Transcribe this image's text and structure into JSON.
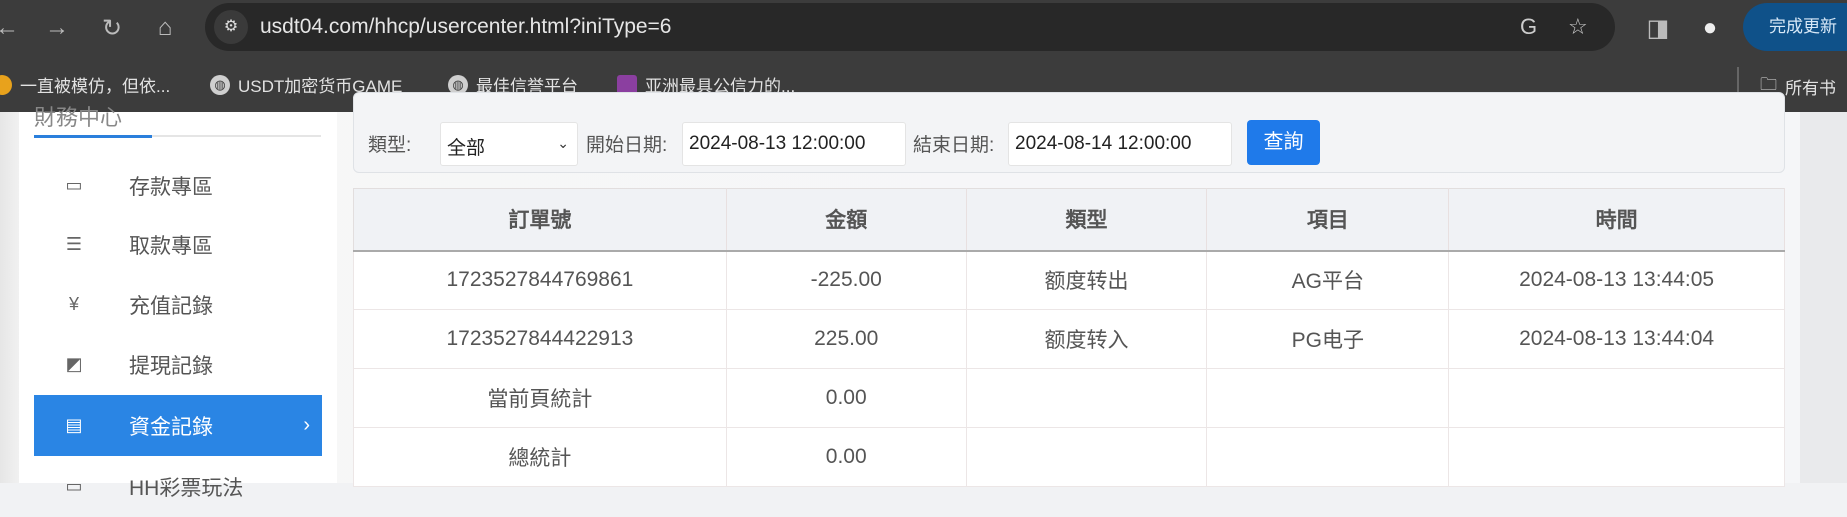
{
  "browser": {
    "url": "usdt04.com/hhcp/usercenter.html?iniType=6",
    "update_button": "完成更新",
    "bookmarks": [
      {
        "label": "一直被模仿，但依...",
        "icon": "smiley-icon"
      },
      {
        "label": "USDT加密货币GAME",
        "icon": "globe-icon"
      },
      {
        "label": "最佳信誉平台",
        "icon": "globe-icon"
      },
      {
        "label": "亚洲最具公信力的...",
        "icon": "flower-icon"
      }
    ],
    "all_bookmarks": "所有书"
  },
  "sidebar": {
    "title": "財務中心",
    "items": [
      {
        "label": "存款專區",
        "icon": "card-icon"
      },
      {
        "label": "取款專區",
        "icon": "hand-money-icon"
      },
      {
        "label": "充值記錄",
        "icon": "money-bag-icon"
      },
      {
        "label": "提現記錄",
        "icon": "wallet-icon"
      },
      {
        "label": "資金記錄",
        "icon": "cash-icon",
        "active": true
      },
      {
        "label": "HH彩票玩法",
        "icon": "ticket-icon"
      }
    ]
  },
  "filter": {
    "type_label": "類型:",
    "type_value": "全部",
    "start_label": "開始日期:",
    "start_value": "2024-08-13 12:00:00",
    "end_label": "結束日期:",
    "end_value": "2024-08-14 12:00:00",
    "query_button": "查詢"
  },
  "table": {
    "headers": [
      "訂單號",
      "金額",
      "類型",
      "項目",
      "時間"
    ],
    "rows": [
      [
        "1723527844769861",
        "-225.00",
        "额度转出",
        "AG平台",
        "2024-08-13 13:44:05"
      ],
      [
        "1723527844422913",
        "225.00",
        "额度转入",
        "PG电子",
        "2024-08-13 13:44:04"
      ],
      [
        "當前頁統計",
        "0.00",
        "",
        "",
        ""
      ],
      [
        "總統計",
        "0.00",
        "",
        "",
        ""
      ]
    ]
  }
}
